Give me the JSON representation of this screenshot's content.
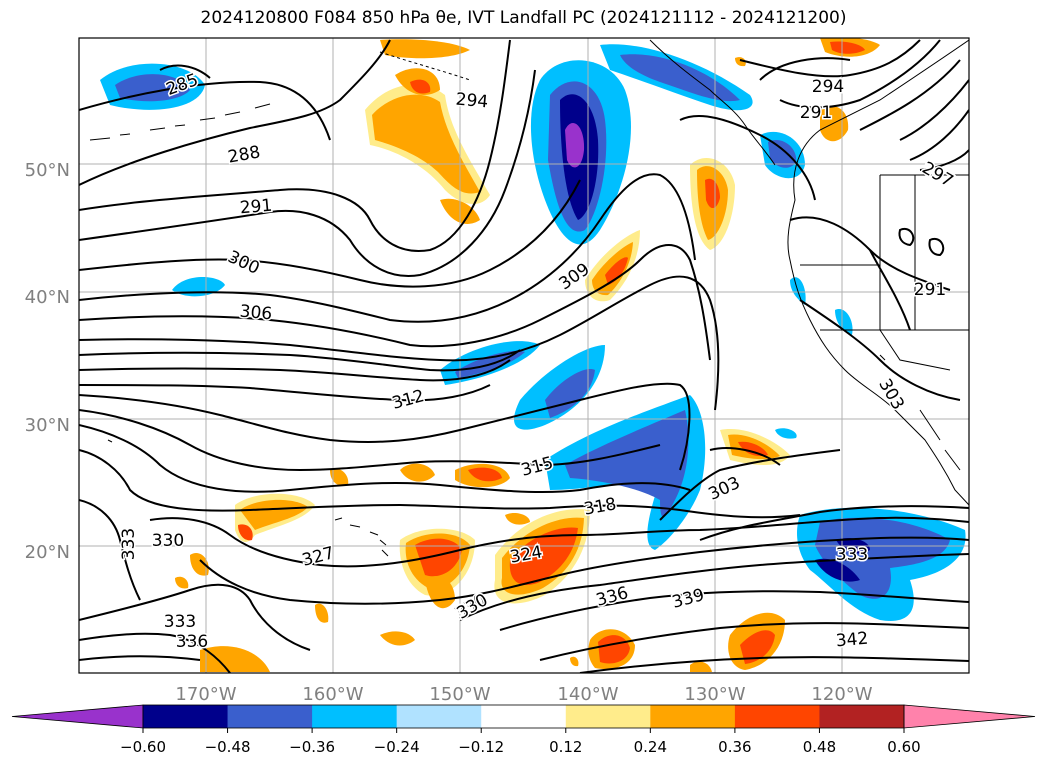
{
  "title": "2024120800 F084 850 hPa θe, IVT Landfall PC (2024121112 - 2024121200)",
  "axes": {
    "lat_labels": [
      "20°N",
      "30°N",
      "40°N",
      "50°N"
    ],
    "lon_labels": [
      "170°W",
      "160°W",
      "150°W",
      "140°W",
      "130°W",
      "120°W"
    ],
    "tick_color": "#808080"
  },
  "colorbar": {
    "ticks": [
      "−0.60",
      "−0.48",
      "−0.36",
      "−0.24",
      "−0.12",
      "0.12",
      "0.24",
      "0.36",
      "0.48",
      "0.60"
    ],
    "colors": [
      "#9932cc",
      "#00008b",
      "#3a5fcd",
      "#00bfff",
      "#b0e2ff",
      "#ffffff",
      "#ffec8b",
      "#ffa500",
      "#ff4500",
      "#b22222",
      "#ff82ab"
    ]
  },
  "contour_labels": [
    {
      "text": "285"
    },
    {
      "text": "288"
    },
    {
      "text": "291"
    },
    {
      "text": "294"
    },
    {
      "text": "300"
    },
    {
      "text": "306"
    },
    {
      "text": "309"
    },
    {
      "text": "312"
    },
    {
      "text": "315"
    },
    {
      "text": "318"
    },
    {
      "text": "324"
    },
    {
      "text": "327"
    },
    {
      "text": "330"
    },
    {
      "text": "333"
    },
    {
      "text": "330"
    },
    {
      "text": "333"
    },
    {
      "text": "336"
    },
    {
      "text": "330"
    },
    {
      "text": "336"
    },
    {
      "text": "339"
    },
    {
      "text": "342"
    },
    {
      "text": "333"
    },
    {
      "text": "303"
    },
    {
      "text": "291"
    },
    {
      "text": "294"
    },
    {
      "text": "297"
    },
    {
      "text": "291"
    },
    {
      "text": "303"
    }
  ]
}
